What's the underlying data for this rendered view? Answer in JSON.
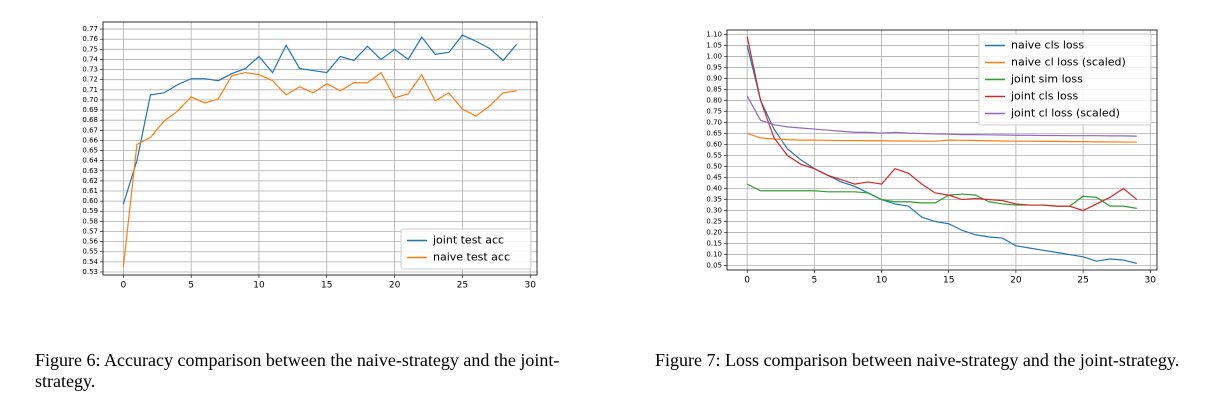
{
  "captions": [
    "Figure 6: Accuracy comparison between the naive-strategy and the joint-strategy.",
    "Figure 7: Loss comparison between naive-strategy and the joint-strategy."
  ],
  "chart_data": [
    {
      "type": "line",
      "grid": true,
      "legend": "lower right",
      "x": [
        0,
        1,
        2,
        3,
        4,
        5,
        6,
        7,
        8,
        9,
        10,
        11,
        12,
        13,
        14,
        15,
        16,
        17,
        18,
        19,
        20,
        21,
        22,
        23,
        24,
        25,
        26,
        27,
        28,
        29
      ],
      "xlim": [
        -1.5,
        30.5
      ],
      "xticks": [
        0,
        5,
        10,
        15,
        20,
        25,
        30
      ],
      "ylim": [
        0.527,
        0.777
      ],
      "yticks": [
        0.53,
        0.54,
        0.55,
        0.56,
        0.57,
        0.58,
        0.59,
        {
          "value": 0.6,
          "label": "0.60"
        },
        0.61,
        0.62,
        0.63,
        0.64,
        0.65,
        0.66,
        0.67,
        0.68,
        0.69,
        {
          "value": 0.7,
          "label": "0.70"
        },
        0.71,
        0.72,
        0.73,
        0.74,
        0.75,
        0.76,
        0.77
      ],
      "series": [
        {
          "name": "joint test acc",
          "color": "#1f77b4",
          "values": [
            0.597,
            0.64,
            0.705,
            0.707,
            0.715,
            0.721,
            0.721,
            0.719,
            0.726,
            0.731,
            0.743,
            0.727,
            0.754,
            0.731,
            0.729,
            0.727,
            0.743,
            0.739,
            0.753,
            0.74,
            0.75,
            0.74,
            0.762,
            0.745,
            0.747,
            0.764,
            0.758,
            0.751,
            0.739,
            0.755
          ]
        },
        {
          "name": "naive test acc",
          "color": "#ff7f0e",
          "values": [
            0.535,
            0.656,
            0.663,
            0.679,
            0.689,
            0.703,
            0.697,
            0.701,
            0.724,
            0.727,
            0.725,
            0.719,
            0.705,
            0.713,
            0.707,
            0.716,
            0.709,
            0.717,
            0.717,
            0.727,
            0.702,
            0.706,
            0.725,
            0.699,
            0.707,
            0.691,
            0.684,
            0.694,
            0.707,
            0.709
          ]
        }
      ]
    },
    {
      "type": "line",
      "grid": true,
      "legend": "upper right",
      "x": [
        0,
        1,
        2,
        3,
        4,
        5,
        6,
        7,
        8,
        9,
        10,
        11,
        12,
        13,
        14,
        15,
        16,
        17,
        18,
        19,
        20,
        21,
        22,
        23,
        24,
        25,
        26,
        27,
        28,
        29
      ],
      "xlim": [
        -1.5,
        30.5
      ],
      "xticks": [
        0,
        5,
        10,
        15,
        20,
        25,
        30
      ],
      "ylim": [
        0.03,
        1.12
      ],
      "yticks": [
        0.05,
        {
          "value": 0.1,
          "label": "0.10"
        },
        0.15,
        {
          "value": 0.2,
          "label": "0.20"
        },
        0.25,
        {
          "value": 0.3,
          "label": "0.30"
        },
        0.35,
        {
          "value": 0.4,
          "label": "0.40"
        },
        0.45,
        {
          "value": 0.5,
          "label": "0.50"
        },
        0.55,
        {
          "value": 0.6,
          "label": "0.60"
        },
        0.65,
        {
          "value": 0.7,
          "label": "0.70"
        },
        0.75,
        {
          "value": 0.8,
          "label": "0.80"
        },
        0.85,
        {
          "value": 0.9,
          "label": "0.90"
        },
        0.95,
        {
          "value": 1,
          "label": "1.00"
        },
        1.05,
        {
          "value": 1.1,
          "label": "1.10"
        }
      ],
      "series": [
        {
          "name": "naive cls loss",
          "color": "#1f77b4",
          "values": [
            1.05,
            0.8,
            0.67,
            0.58,
            0.53,
            0.49,
            0.46,
            0.43,
            0.41,
            0.38,
            0.35,
            0.33,
            0.32,
            0.27,
            0.25,
            0.24,
            0.21,
            0.19,
            0.18,
            0.175,
            0.14,
            0.13,
            0.12,
            0.11,
            0.1,
            0.09,
            0.07,
            0.08,
            0.075,
            0.06
          ]
        },
        {
          "name": "naive cl loss (scaled)",
          "color": "#ff7f0e",
          "values": [
            0.65,
            0.63,
            0.625,
            0.622,
            0.62,
            0.62,
            0.619,
            0.618,
            0.618,
            0.617,
            0.617,
            0.616,
            0.616,
            0.615,
            0.615,
            0.62,
            0.619,
            0.618,
            0.617,
            0.616,
            0.615,
            0.615,
            0.614,
            0.614,
            0.613,
            0.613,
            0.612,
            0.612,
            0.611,
            0.611
          ]
        },
        {
          "name": "joint sim loss",
          "color": "#2ca02c",
          "values": [
            0.42,
            0.39,
            0.39,
            0.39,
            0.39,
            0.39,
            0.385,
            0.385,
            0.385,
            0.38,
            0.35,
            0.34,
            0.34,
            0.335,
            0.335,
            0.37,
            0.375,
            0.37,
            0.34,
            0.33,
            0.325,
            0.325,
            0.325,
            0.32,
            0.32,
            0.365,
            0.36,
            0.32,
            0.32,
            0.31
          ]
        },
        {
          "name": "joint cls loss",
          "color": "#d62728",
          "values": [
            1.09,
            0.8,
            0.63,
            0.55,
            0.51,
            0.49,
            0.46,
            0.44,
            0.42,
            0.43,
            0.42,
            0.49,
            0.47,
            0.42,
            0.38,
            0.37,
            0.35,
            0.355,
            0.35,
            0.345,
            0.33,
            0.325,
            0.325,
            0.32,
            0.32,
            0.3,
            0.33,
            0.36,
            0.4,
            0.35
          ]
        },
        {
          "name": "joint cl loss (scaled)",
          "color": "#9467bd",
          "values": [
            0.82,
            0.71,
            0.69,
            0.68,
            0.675,
            0.67,
            0.665,
            0.66,
            0.655,
            0.655,
            0.652,
            0.655,
            0.652,
            0.65,
            0.648,
            0.647,
            0.645,
            0.645,
            0.644,
            0.643,
            0.642,
            0.642,
            0.641,
            0.641,
            0.64,
            0.64,
            0.64,
            0.639,
            0.639,
            0.638
          ]
        }
      ]
    }
  ]
}
